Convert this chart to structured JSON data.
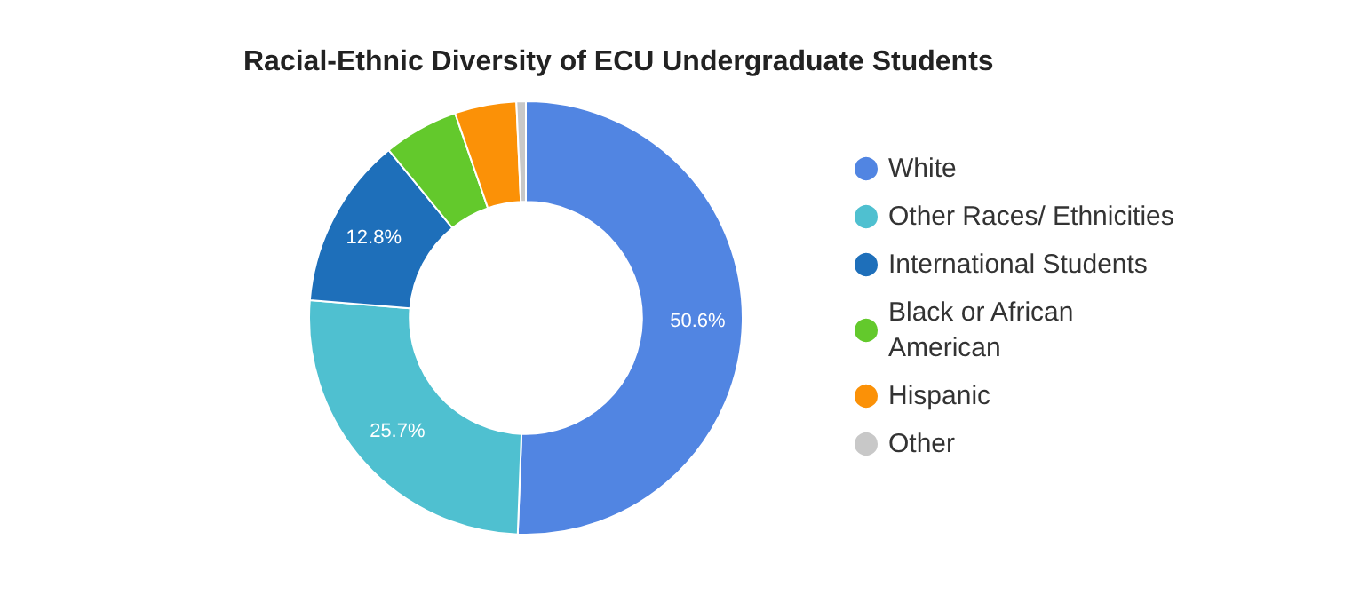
{
  "chart_data": {
    "type": "donut",
    "title": "Racial-Ethnic Diversity of ECU Undergraduate Students",
    "categories": [
      "White",
      "Other Races/ Ethnicities",
      "International Students",
      "Black or African American",
      "Hispanic",
      "Other"
    ],
    "values": [
      50.6,
      25.7,
      12.8,
      5.6,
      4.6,
      0.7
    ],
    "colors": [
      "#5185e2",
      "#4fc0d0",
      "#1e6fba",
      "#63c92c",
      "#fb9107",
      "#c8c8c8"
    ],
    "value_labels": [
      "50.6%",
      "25.7%",
      "12.8%",
      null,
      null,
      null
    ],
    "legend": "right"
  }
}
